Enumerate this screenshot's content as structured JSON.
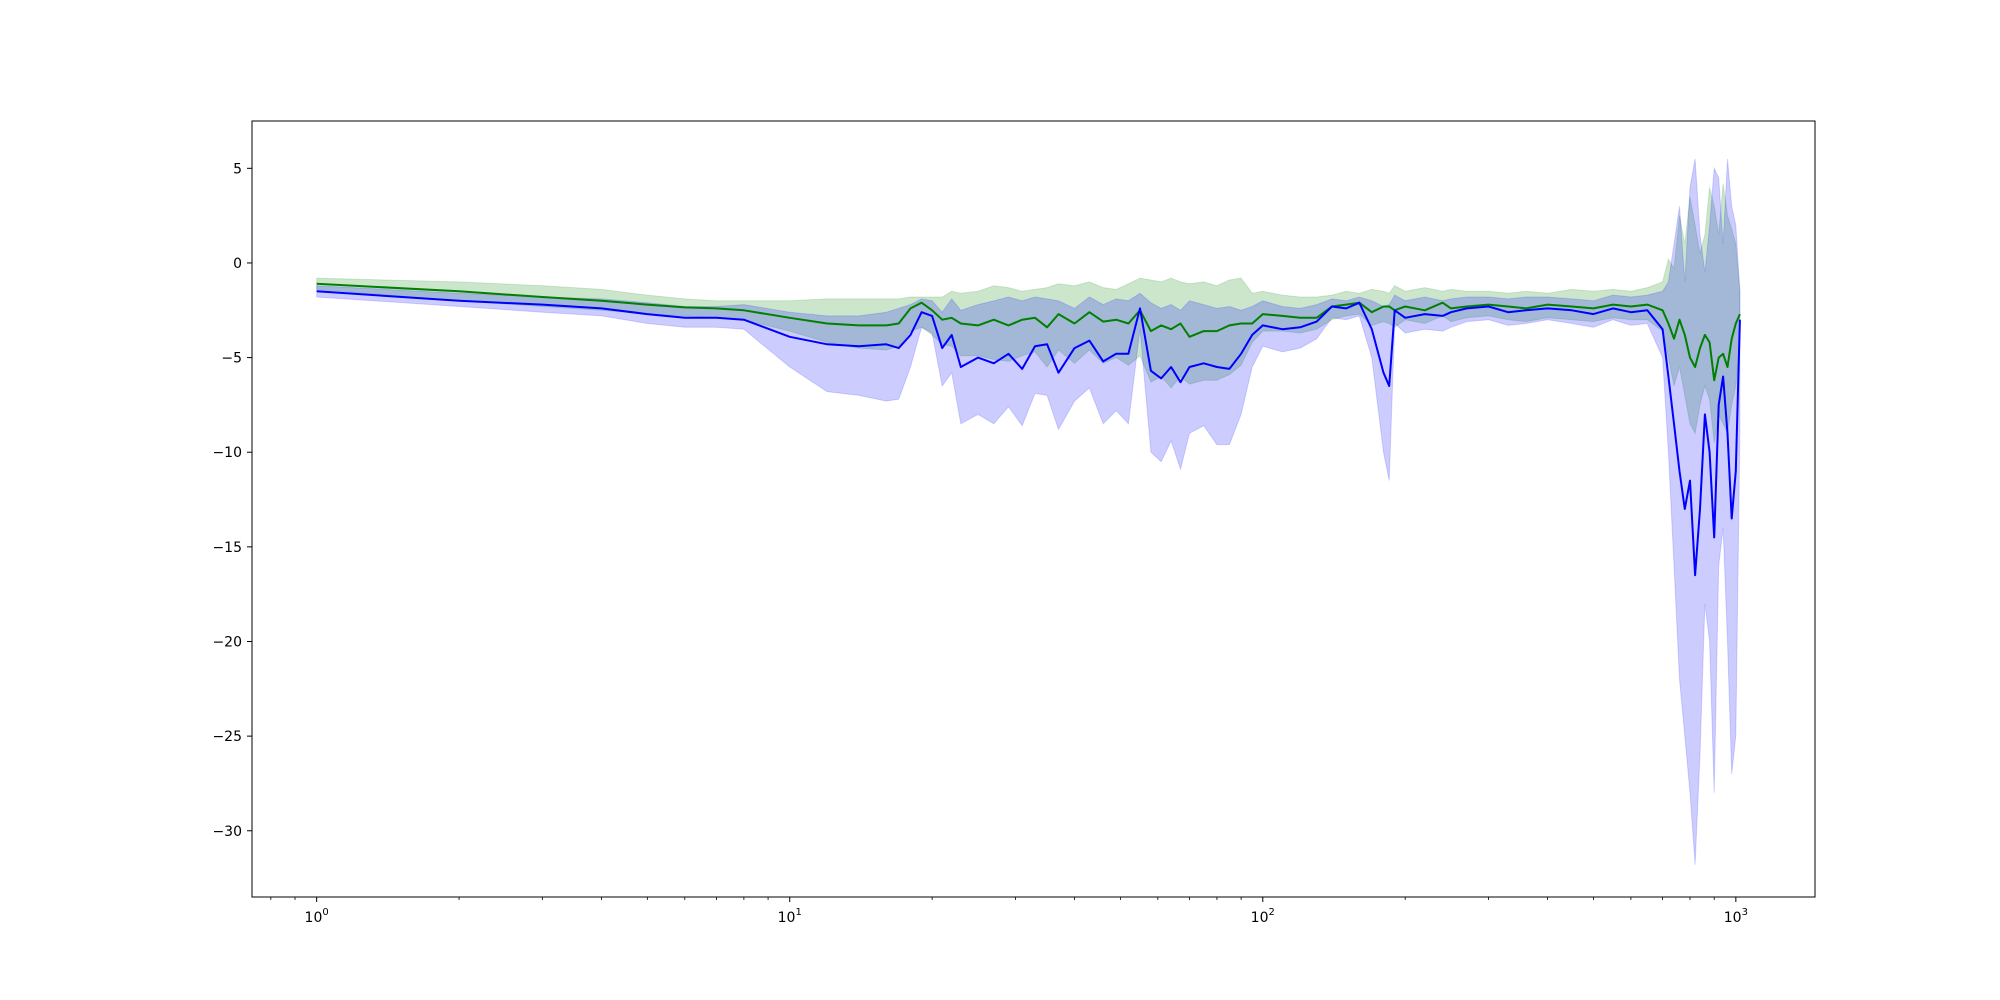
{
  "chart_data": {
    "type": "line",
    "title": "",
    "xlabel": "",
    "ylabel": "",
    "xscale": "log",
    "xlim": [
      0.73,
      1470
    ],
    "ylim": [
      -33.5,
      7.5
    ],
    "grid": false,
    "legend": "none",
    "x_ticks": [
      {
        "base": "10",
        "exp": "0",
        "value": 1
      },
      {
        "base": "10",
        "exp": "1",
        "value": 10
      },
      {
        "base": "10",
        "exp": "2",
        "value": 100
      },
      {
        "base": "10",
        "exp": "3",
        "value": 1000
      }
    ],
    "y_ticks": [
      {
        "label": "5",
        "value": 5
      },
      {
        "label": "0",
        "value": 0
      },
      {
        "label": "−5",
        "value": -5
      },
      {
        "label": "−10",
        "value": -10
      },
      {
        "label": "−15",
        "value": -15
      },
      {
        "label": "−20",
        "value": -20
      },
      {
        "label": "−25",
        "value": -25
      },
      {
        "label": "−30",
        "value": -30
      }
    ],
    "x": [
      1,
      2,
      3,
      4,
      5,
      6,
      7,
      8,
      10,
      12,
      14,
      16,
      17,
      18,
      19,
      20,
      21,
      22,
      23,
      25,
      27,
      29,
      31,
      33,
      35,
      37,
      40,
      43,
      46,
      49,
      52,
      55,
      58,
      61,
      64,
      67,
      70,
      75,
      80,
      85,
      90,
      95,
      100,
      110,
      120,
      130,
      140,
      150,
      160,
      170,
      180,
      185,
      190,
      200,
      220,
      240,
      250,
      270,
      300,
      330,
      360,
      400,
      450,
      500,
      550,
      600,
      650,
      700,
      720,
      740,
      760,
      780,
      800,
      820,
      840,
      860,
      880,
      900,
      920,
      940,
      960,
      980,
      1000,
      1020
    ],
    "series": [
      {
        "color": "#008000",
        "values": [
          -1.1,
          -1.5,
          -1.8,
          -2.0,
          -2.2,
          -2.35,
          -2.4,
          -2.5,
          -2.9,
          -3.2,
          -3.3,
          -3.3,
          -3.2,
          -2.4,
          -2.1,
          -2.5,
          -3.0,
          -2.9,
          -3.2,
          -3.3,
          -3.0,
          -3.3,
          -3.0,
          -2.9,
          -3.4,
          -2.7,
          -3.2,
          -2.6,
          -3.1,
          -3.0,
          -3.2,
          -2.5,
          -3.6,
          -3.3,
          -3.5,
          -3.2,
          -3.9,
          -3.6,
          -3.6,
          -3.3,
          -3.2,
          -3.2,
          -2.7,
          -2.8,
          -2.9,
          -2.9,
          -2.3,
          -2.2,
          -2.1,
          -2.6,
          -2.3,
          -2.3,
          -2.5,
          -2.3,
          -2.5,
          -2.1,
          -2.4,
          -2.3,
          -2.2,
          -2.3,
          -2.4,
          -2.2,
          -2.3,
          -2.4,
          -2.2,
          -2.3,
          -2.2,
          -2.5,
          -3.2,
          -4.0,
          -3.0,
          -3.8,
          -5.0,
          -5.5,
          -4.5,
          -3.8,
          -4.2,
          -6.2,
          -5.0,
          -4.8,
          -5.5,
          -4.0,
          -3.2,
          -2.7
        ],
        "upper": [
          -0.8,
          -1.0,
          -1.2,
          -1.4,
          -1.7,
          -1.9,
          -2.0,
          -2.0,
          -2.0,
          -1.9,
          -1.9,
          -1.9,
          -1.9,
          -1.8,
          -1.8,
          -1.8,
          -1.8,
          -1.5,
          -1.6,
          -1.5,
          -1.2,
          -1.3,
          -1.5,
          -1.4,
          -1.3,
          -1.1,
          -1.2,
          -1.0,
          -1.3,
          -1.4,
          -1.1,
          -0.8,
          -0.9,
          -1.0,
          -0.8,
          -1.0,
          -1.1,
          -1.0,
          -1.2,
          -0.9,
          -0.8,
          -1.6,
          -1.5,
          -1.7,
          -1.8,
          -1.8,
          -1.7,
          -1.5,
          -1.6,
          -1.4,
          -1.5,
          -1.6,
          -1.2,
          -1.5,
          -1.3,
          -1.5,
          -1.4,
          -1.5,
          -1.5,
          -1.6,
          -1.5,
          -1.6,
          -1.4,
          -1.5,
          -1.4,
          -1.5,
          -1.3,
          -1.0,
          0.2,
          -0.3,
          2.5,
          1.0,
          3.5,
          2.0,
          0.5,
          1.5,
          4.0,
          3.0,
          1.5,
          4.2,
          2.5,
          1.8,
          1.0,
          -1.5
        ],
        "lower": [
          -1.4,
          -2.0,
          -2.3,
          -2.5,
          -2.7,
          -2.8,
          -2.9,
          -3.0,
          -3.6,
          -4.2,
          -4.5,
          -4.6,
          -4.4,
          -3.6,
          -3.4,
          -3.8,
          -4.3,
          -4.4,
          -4.9,
          -4.9,
          -5.1,
          -5.2,
          -4.9,
          -4.7,
          -5.5,
          -4.6,
          -5.3,
          -4.6,
          -5.3,
          -5.0,
          -5.4,
          -4.9,
          -6.3,
          -6.0,
          -6.6,
          -6.0,
          -6.4,
          -6.2,
          -6.2,
          -5.9,
          -5.4,
          -4.2,
          -3.6,
          -3.6,
          -3.7,
          -3.5,
          -3.0,
          -2.8,
          -2.7,
          -3.3,
          -3.1,
          -3.2,
          -3.4,
          -3.0,
          -3.2,
          -2.8,
          -3.1,
          -2.9,
          -2.8,
          -3.0,
          -3.1,
          -2.9,
          -3.0,
          -3.1,
          -2.9,
          -3.0,
          -3.0,
          -3.6,
          -5.0,
          -6.5,
          -5.5,
          -7.0,
          -8.5,
          -9.0,
          -7.5,
          -6.5,
          -7.2,
          -9.5,
          -8.0,
          -8.5,
          -9.0,
          -7.5,
          -6.5,
          -4.2
        ]
      },
      {
        "color": "#0000ff",
        "values": [
          -1.5,
          -2.0,
          -2.2,
          -2.4,
          -2.7,
          -2.9,
          -2.9,
          -3.0,
          -3.9,
          -4.3,
          -4.4,
          -4.3,
          -4.5,
          -3.8,
          -2.6,
          -2.8,
          -4.5,
          -3.8,
          -5.5,
          -5.0,
          -5.3,
          -4.8,
          -5.6,
          -4.4,
          -4.3,
          -5.8,
          -4.5,
          -4.1,
          -5.2,
          -4.8,
          -4.8,
          -2.4,
          -5.7,
          -6.1,
          -5.5,
          -6.3,
          -5.5,
          -5.3,
          -5.5,
          -5.6,
          -4.8,
          -3.8,
          -3.3,
          -3.5,
          -3.4,
          -3.1,
          -2.3,
          -2.4,
          -2.1,
          -3.5,
          -5.8,
          -6.5,
          -2.5,
          -2.9,
          -2.7,
          -2.8,
          -2.6,
          -2.4,
          -2.3,
          -2.6,
          -2.5,
          -2.4,
          -2.5,
          -2.7,
          -2.4,
          -2.6,
          -2.5,
          -3.5,
          -6.0,
          -8.5,
          -11.0,
          -13.0,
          -11.5,
          -16.5,
          -13.0,
          -8.0,
          -10.0,
          -14.5,
          -7.5,
          -6.0,
          -9.0,
          -13.5,
          -11.0,
          -3.0
        ],
        "upper": [
          -1.2,
          -1.6,
          -1.8,
          -1.9,
          -2.1,
          -2.3,
          -2.3,
          -2.2,
          -2.6,
          -2.8,
          -2.8,
          -2.6,
          -2.4,
          -2.2,
          -1.9,
          -2.0,
          -2.6,
          -1.9,
          -2.5,
          -2.2,
          -2.0,
          -1.8,
          -2.0,
          -1.8,
          -1.9,
          -2.0,
          -2.4,
          -1.8,
          -2.2,
          -1.9,
          -2.0,
          -1.6,
          -2.1,
          -2.4,
          -2.2,
          -2.5,
          -2.0,
          -2.2,
          -2.4,
          -2.3,
          -2.5,
          -2.3,
          -2.0,
          -2.3,
          -2.4,
          -2.2,
          -1.9,
          -2.0,
          -1.8,
          -2.0,
          -2.3,
          -2.2,
          -1.7,
          -2.0,
          -1.8,
          -2.0,
          -1.9,
          -1.8,
          -1.8,
          -1.9,
          -1.8,
          -1.8,
          -1.9,
          -2.0,
          -1.7,
          -1.8,
          -1.7,
          -1.5,
          -1.0,
          1.0,
          3.0,
          -1.0,
          4.0,
          5.5,
          1.5,
          -0.5,
          2.0,
          5.0,
          4.5,
          1.0,
          5.5,
          3.0,
          2.0,
          -1.5
        ],
        "lower": [
          -1.8,
          -2.3,
          -2.6,
          -2.8,
          -3.2,
          -3.4,
          -3.4,
          -3.5,
          -5.5,
          -6.8,
          -7.0,
          -7.3,
          -7.2,
          -5.5,
          -3.4,
          -3.7,
          -6.5,
          -5.8,
          -8.5,
          -8.0,
          -8.5,
          -7.6,
          -8.6,
          -6.9,
          -7.0,
          -8.8,
          -7.3,
          -6.6,
          -8.5,
          -7.8,
          -8.5,
          -3.5,
          -10.0,
          -10.5,
          -9.4,
          -10.9,
          -9.0,
          -8.6,
          -9.6,
          -9.6,
          -8.0,
          -5.5,
          -4.4,
          -4.7,
          -4.5,
          -4.0,
          -2.9,
          -3.0,
          -2.8,
          -5.0,
          -10.0,
          -11.5,
          -3.2,
          -3.7,
          -3.5,
          -3.6,
          -3.4,
          -3.1,
          -3.0,
          -3.3,
          -3.2,
          -3.0,
          -3.2,
          -3.4,
          -3.0,
          -3.3,
          -3.2,
          -5.0,
          -10.0,
          -16.0,
          -22.0,
          -25.0,
          -28.0,
          -31.8,
          -26.0,
          -18.0,
          -20.0,
          -28.0,
          -16.0,
          -14.0,
          -20.0,
          -27.0,
          -25.0,
          -9.0
        ]
      }
    ]
  }
}
